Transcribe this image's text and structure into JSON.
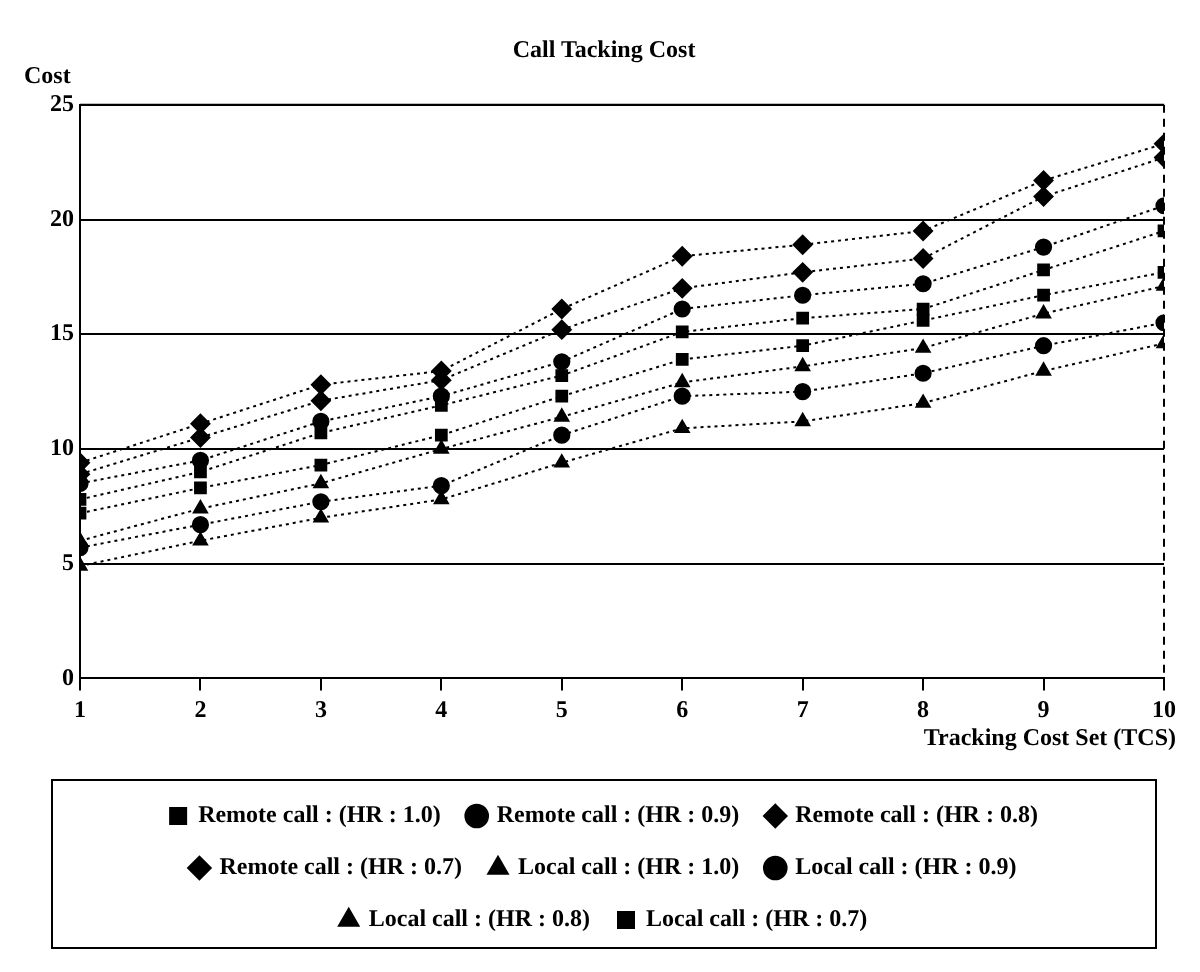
{
  "chart_data": {
    "type": "line",
    "title": "Call Tacking Cost",
    "xlabel": "Tracking Cost Set (TCS)",
    "ylabel": "Cost",
    "x": [
      1,
      2,
      3,
      4,
      5,
      6,
      7,
      8,
      9,
      10
    ],
    "xlim": [
      1,
      10
    ],
    "xticks": [
      1,
      2,
      3,
      4,
      5,
      6,
      7,
      8,
      9,
      10
    ],
    "ylim": [
      0,
      25
    ],
    "yticks": [
      0,
      5,
      10,
      15,
      20,
      25
    ],
    "grid": "y",
    "legend": "bottom",
    "line_style": "dotted",
    "series": [
      {
        "name": "Remote call : (HR : 1.0)",
        "color": "#000000",
        "marker": "square",
        "values": [
          7.8,
          9.0,
          10.7,
          11.9,
          13.2,
          15.1,
          15.7,
          16.1,
          17.8,
          19.5
        ]
      },
      {
        "name": "Remote call : (HR : 0.9)",
        "color": "#000000",
        "marker": "circle",
        "values": [
          8.5,
          9.5,
          11.2,
          12.3,
          13.8,
          16.1,
          16.7,
          17.2,
          18.8,
          20.6
        ]
      },
      {
        "name": "Remote call : (HR : 0.8)",
        "color": "#000000",
        "marker": "diamond",
        "values": [
          8.9,
          10.5,
          12.1,
          13.0,
          15.2,
          17.0,
          17.7,
          18.3,
          21.0,
          22.7
        ]
      },
      {
        "name": "Remote call : (HR : 0.7)",
        "color": "#000000",
        "marker": "diamond",
        "values": [
          9.4,
          11.1,
          12.8,
          13.4,
          16.1,
          18.4,
          18.9,
          19.5,
          21.7,
          23.3
        ]
      },
      {
        "name": "Local call : (HR : 1.0)",
        "color": "#000000",
        "marker": "triangle",
        "values": [
          4.9,
          6.0,
          7.0,
          7.8,
          9.4,
          10.9,
          11.2,
          12.0,
          13.4,
          14.6
        ]
      },
      {
        "name": "Local call : (HR : 0.9)",
        "color": "#000000",
        "marker": "circle",
        "values": [
          5.7,
          6.7,
          7.7,
          8.4,
          10.6,
          12.3,
          12.5,
          13.3,
          14.5,
          15.5
        ]
      },
      {
        "name": "Local call : (HR : 0.8)",
        "color": "#000000",
        "marker": "triangle",
        "values": [
          6.0,
          7.4,
          8.5,
          10.0,
          11.4,
          12.9,
          13.6,
          14.4,
          15.9,
          17.1
        ]
      },
      {
        "name": "Local call : (HR : 0.7)",
        "color": "#000000",
        "marker": "square",
        "values": [
          7.2,
          8.3,
          9.3,
          10.6,
          12.3,
          13.9,
          14.5,
          15.6,
          16.7,
          17.7
        ]
      }
    ]
  }
}
